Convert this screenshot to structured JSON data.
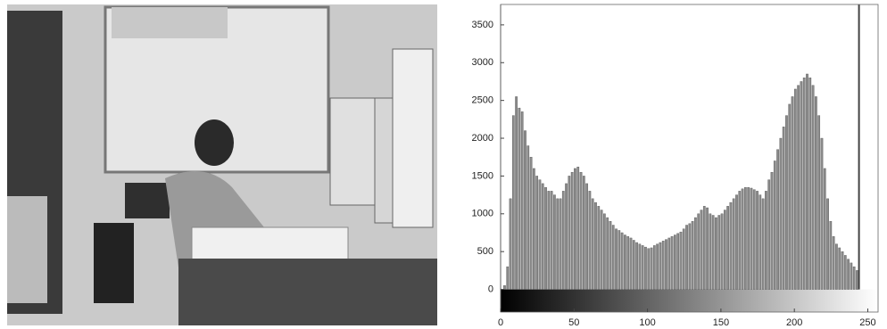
{
  "chart_data": {
    "type": "histogram",
    "bins": [
      0,
      2,
      4,
      6,
      8,
      10,
      12,
      14,
      16,
      18,
      20,
      22,
      24,
      26,
      28,
      30,
      32,
      34,
      36,
      38,
      40,
      42,
      44,
      46,
      48,
      50,
      52,
      54,
      56,
      58,
      60,
      62,
      64,
      66,
      68,
      70,
      72,
      74,
      76,
      78,
      80,
      82,
      84,
      86,
      88,
      90,
      92,
      94,
      96,
      98,
      100,
      102,
      104,
      106,
      108,
      110,
      112,
      114,
      116,
      118,
      120,
      122,
      124,
      126,
      128,
      130,
      132,
      134,
      136,
      138,
      140,
      142,
      144,
      146,
      148,
      150,
      152,
      154,
      156,
      158,
      160,
      162,
      164,
      166,
      168,
      170,
      172,
      174,
      176,
      178,
      180,
      182,
      184,
      186,
      188,
      190,
      192,
      194,
      196,
      198,
      200,
      202,
      204,
      206,
      208,
      210,
      212,
      214,
      216,
      218,
      220,
      222,
      224,
      226,
      228,
      230,
      232,
      234,
      236,
      238,
      240,
      242,
      244,
      246,
      248,
      250,
      252,
      254,
      256
    ],
    "values": [
      0,
      50,
      300,
      1200,
      2300,
      2550,
      2400,
      2350,
      2100,
      1900,
      1750,
      1600,
      1500,
      1450,
      1400,
      1350,
      1300,
      1300,
      1250,
      1200,
      1200,
      1300,
      1400,
      1500,
      1550,
      1600,
      1620,
      1550,
      1500,
      1400,
      1300,
      1200,
      1150,
      1100,
      1050,
      1000,
      950,
      900,
      850,
      800,
      780,
      750,
      720,
      700,
      680,
      650,
      620,
      600,
      580,
      560,
      540,
      550,
      580,
      600,
      620,
      640,
      660,
      680,
      700,
      720,
      740,
      760,
      800,
      850,
      870,
      900,
      950,
      1000,
      1050,
      1100,
      1080,
      1000,
      980,
      950,
      980,
      1000,
      1050,
      1100,
      1150,
      1200,
      1250,
      1300,
      1330,
      1350,
      1350,
      1340,
      1320,
      1300,
      1250,
      1200,
      1300,
      1450,
      1550,
      1700,
      1850,
      2000,
      2150,
      2300,
      2450,
      2550,
      2650,
      2700,
      2750,
      2800,
      2850,
      2800,
      2700,
      2550,
      2300,
      2000,
      1600,
      1200,
      900,
      700,
      600,
      550,
      500,
      450,
      400,
      350,
      300,
      250,
      0,
      0,
      0,
      0,
      0,
      0
    ],
    "color": "#8c8c8c",
    "marker_line": 244,
    "xlim": [
      0,
      257
    ],
    "xticks": [
      0,
      50,
      100,
      150,
      200,
      250
    ],
    "ylim": [
      -300,
      3770
    ],
    "yticks": [
      0,
      500,
      1000,
      1500,
      2000,
      2500,
      3000,
      3500
    ]
  }
}
